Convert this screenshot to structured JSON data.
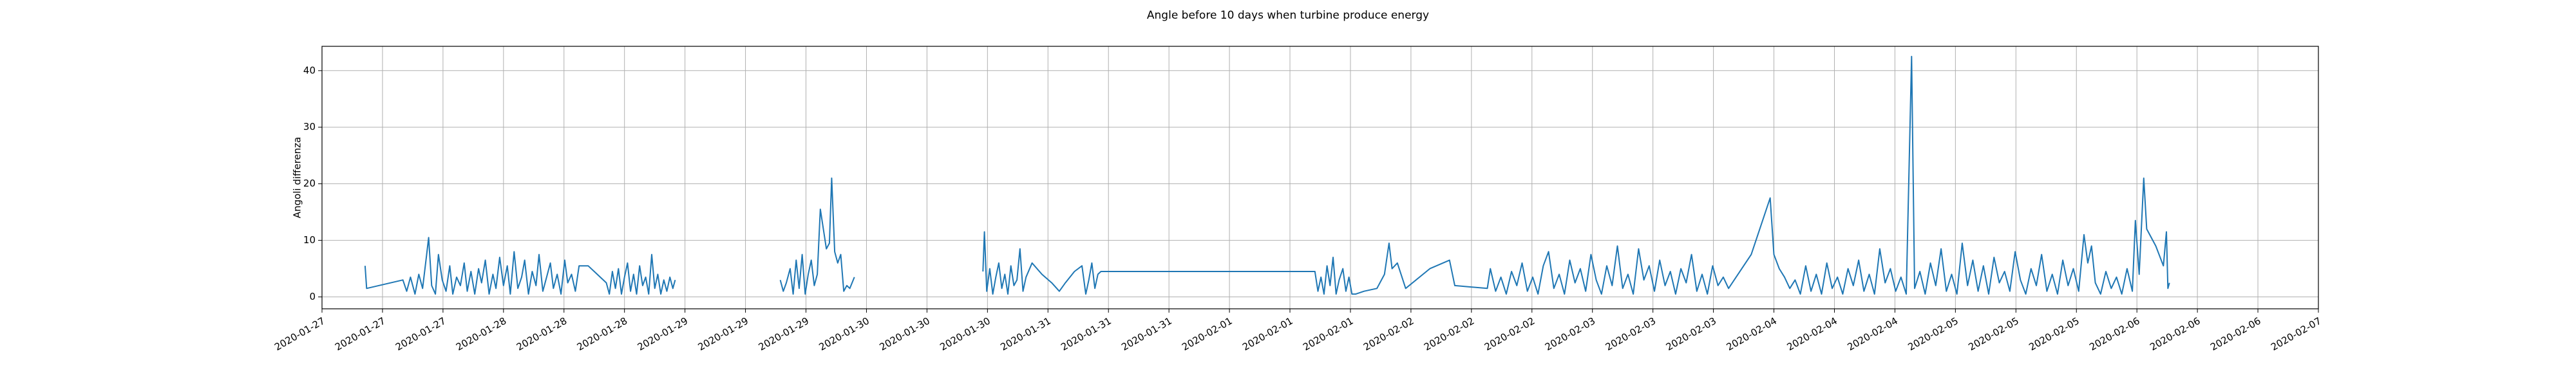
{
  "chart_data": {
    "type": "line",
    "title": "Angle before 10 days when turbine produce energy",
    "y_label": "Angoli differenza",
    "color": "#1f77b4",
    "grid": true,
    "xlim": [
      0,
      264
    ],
    "ylim": [
      -2.1,
      44.3
    ],
    "yticks": [
      0,
      10,
      20,
      30,
      40
    ],
    "xticks": [
      {
        "value": 0,
        "label": "2020-01-27"
      },
      {
        "value": 8,
        "label": "2020-01-27"
      },
      {
        "value": 16,
        "label": "2020-01-27"
      },
      {
        "value": 24,
        "label": "2020-01-28"
      },
      {
        "value": 32,
        "label": "2020-01-28"
      },
      {
        "value": 40,
        "label": "2020-01-28"
      },
      {
        "value": 48,
        "label": "2020-01-29"
      },
      {
        "value": 56,
        "label": "2020-01-29"
      },
      {
        "value": 64,
        "label": "2020-01-29"
      },
      {
        "value": 72,
        "label": "2020-01-30"
      },
      {
        "value": 80,
        "label": "2020-01-30"
      },
      {
        "value": 88,
        "label": "2020-01-30"
      },
      {
        "value": 96,
        "label": "2020-01-31"
      },
      {
        "value": 104,
        "label": "2020-01-31"
      },
      {
        "value": 112,
        "label": "2020-01-31"
      },
      {
        "value": 120,
        "label": "2020-02-01"
      },
      {
        "value": 128,
        "label": "2020-02-01"
      },
      {
        "value": 136,
        "label": "2020-02-01"
      },
      {
        "value": 144,
        "label": "2020-02-02"
      },
      {
        "value": 152,
        "label": "2020-02-02"
      },
      {
        "value": 160,
        "label": "2020-02-02"
      },
      {
        "value": 168,
        "label": "2020-02-03"
      },
      {
        "value": 176,
        "label": "2020-02-03"
      },
      {
        "value": 184,
        "label": "2020-02-03"
      },
      {
        "value": 192,
        "label": "2020-02-04"
      },
      {
        "value": 200,
        "label": "2020-02-04"
      },
      {
        "value": 208,
        "label": "2020-02-04"
      },
      {
        "value": 216,
        "label": "2020-02-05"
      },
      {
        "value": 224,
        "label": "2020-02-05"
      },
      {
        "value": 232,
        "label": "2020-02-05"
      },
      {
        "value": 240,
        "label": "2020-02-06"
      },
      {
        "value": 248,
        "label": "2020-02-06"
      },
      {
        "value": 256,
        "label": "2020-02-06"
      },
      {
        "value": 264,
        "label": "2020-02-07"
      }
    ],
    "x": [
      5.7,
      5.9,
      10.7,
      11.2,
      11.7,
      12.3,
      12.8,
      13.3,
      13.8,
      14.1,
      14.5,
      15.0,
      15.4,
      15.9,
      16.4,
      16.9,
      17.3,
      17.8,
      18.3,
      18.8,
      19.2,
      19.7,
      20.2,
      20.7,
      21.1,
      21.6,
      22.1,
      22.6,
      23.0,
      23.5,
      24.0,
      24.5,
      24.9,
      25.4,
      25.9,
      26.4,
      26.8,
      27.3,
      27.8,
      28.3,
      28.7,
      29.2,
      29.7,
      30.2,
      30.6,
      31.1,
      31.6,
      32.1,
      32.5,
      33.0,
      33.5,
      34.0,
      35.2,
      36.4,
      37.6,
      38.0,
      38.4,
      38.8,
      39.2,
      39.6,
      40.0,
      40.4,
      40.8,
      41.2,
      41.6,
      42.0,
      42.4,
      42.8,
      43.2,
      43.6,
      44.0,
      44.4,
      44.8,
      45.2,
      45.6,
      46.0,
      46.4,
      46.7,
      53.0,
      60.6,
      61.0,
      61.4,
      61.9,
      62.3,
      62.7,
      63.1,
      63.5,
      63.9,
      64.3,
      64.7,
      65.1,
      65.5,
      65.9,
      66.3,
      66.7,
      67.1,
      67.4,
      67.8,
      68.2,
      68.6,
      69.0,
      69.4,
      69.8,
      70.4,
      80.0,
      87.4,
      87.6,
      87.9,
      88.3,
      88.7,
      89.1,
      89.5,
      89.9,
      90.3,
      90.7,
      91.1,
      91.5,
      91.9,
      92.3,
      92.7,
      93.1,
      93.9,
      95.2,
      96.5,
      97.5,
      98.3,
      99.5,
      100.5,
      101.0,
      101.4,
      101.8,
      102.2,
      102.6,
      103.0,
      131.3,
      131.7,
      132.1,
      132.5,
      132.9,
      133.3,
      133.7,
      134.1,
      134.5,
      135.0,
      135.4,
      135.8,
      136.2,
      136.7,
      137.8,
      139.5,
      140.5,
      141.1,
      141.5,
      142.2,
      143.3,
      146.5,
      149.1,
      149.8,
      154.1,
      154.5,
      155.2,
      155.9,
      156.6,
      157.3,
      158.0,
      158.7,
      159.4,
      160.1,
      160.8,
      161.5,
      162.2,
      162.9,
      163.6,
      164.3,
      165.0,
      165.7,
      166.4,
      167.1,
      167.8,
      168.5,
      169.2,
      169.9,
      170.6,
      171.3,
      172.0,
      172.7,
      173.4,
      174.1,
      174.8,
      175.5,
      176.2,
      176.9,
      177.6,
      178.3,
      179.0,
      179.7,
      180.4,
      181.1,
      181.8,
      182.5,
      183.2,
      183.9,
      184.6,
      185.3,
      186.0,
      189.0,
      191.5,
      192.0,
      192.7,
      193.4,
      194.1,
      194.8,
      195.5,
      196.2,
      196.9,
      197.6,
      198.3,
      199.0,
      199.7,
      200.4,
      201.1,
      201.8,
      202.5,
      203.2,
      203.9,
      204.6,
      205.3,
      206.0,
      206.7,
      207.4,
      208.1,
      208.8,
      209.5,
      210.2,
      210.6,
      211.3,
      212.0,
      212.7,
      213.4,
      214.1,
      214.8,
      215.5,
      216.2,
      216.9,
      217.6,
      218.3,
      219.0,
      219.7,
      220.4,
      221.1,
      221.8,
      222.5,
      223.2,
      223.9,
      224.6,
      225.3,
      226.0,
      226.7,
      227.4,
      228.1,
      228.8,
      229.5,
      230.2,
      230.9,
      231.6,
      232.3,
      233.0,
      233.5,
      234.0,
      234.5,
      235.2,
      235.9,
      236.6,
      237.3,
      238.0,
      238.7,
      239.4,
      239.8,
      240.3,
      240.9,
      241.3,
      242.5,
      243.5,
      243.9,
      244.1,
      244.3
    ],
    "values": [
      5.5,
      1.5,
      3.0,
      1.0,
      3.5,
      0.5,
      4.0,
      1.5,
      7.0,
      10.5,
      2.0,
      0.5,
      7.5,
      3.0,
      1.0,
      5.5,
      0.5,
      3.5,
      2.0,
      6.0,
      1.0,
      4.5,
      0.5,
      5.0,
      2.5,
      6.5,
      0.5,
      4.0,
      1.5,
      7.0,
      2.0,
      5.5,
      0.5,
      8.0,
      1.5,
      3.5,
      6.5,
      0.5,
      4.5,
      2.0,
      7.5,
      1.0,
      3.5,
      6.0,
      1.5,
      4.0,
      0.5,
      6.5,
      2.5,
      4.0,
      1.0,
      5.5,
      5.5,
      4.0,
      2.5,
      0.5,
      4.5,
      1.5,
      5.0,
      0.5,
      3.5,
      6.0,
      1.0,
      4.0,
      0.5,
      5.5,
      2.0,
      3.5,
      0.5,
      7.5,
      1.5,
      4.0,
      0.5,
      3.0,
      1.0,
      3.5,
      1.5,
      3.0,
      null,
      3.0,
      1.0,
      2.5,
      5.0,
      0.5,
      6.5,
      1.5,
      7.5,
      0.5,
      4.0,
      6.5,
      2.0,
      4.0,
      15.5,
      12.0,
      8.5,
      9.5,
      21.0,
      8.0,
      6.0,
      7.5,
      1.0,
      2.0,
      1.5,
      3.5,
      null,
      4.5,
      11.5,
      1.0,
      5.0,
      0.5,
      3.5,
      6.0,
      1.5,
      4.0,
      0.5,
      5.5,
      2.0,
      3.0,
      8.5,
      1.0,
      3.5,
      6.0,
      4.0,
      2.5,
      1.0,
      2.5,
      4.5,
      5.5,
      0.5,
      3.0,
      6.0,
      1.5,
      4.0,
      4.5,
      4.5,
      1.0,
      3.5,
      0.5,
      5.5,
      2.0,
      7.0,
      0.5,
      3.0,
      5.0,
      1.0,
      3.5,
      0.5,
      0.5,
      1.0,
      1.5,
      4.0,
      9.5,
      5.0,
      6.0,
      1.5,
      5.0,
      6.5,
      2.0,
      1.5,
      5.0,
      1.0,
      3.5,
      0.5,
      4.5,
      2.0,
      6.0,
      1.0,
      3.5,
      0.5,
      5.5,
      8.0,
      1.5,
      4.0,
      0.5,
      6.5,
      2.5,
      5.0,
      1.0,
      7.5,
      3.0,
      0.5,
      5.5,
      2.0,
      9.0,
      1.5,
      4.0,
      0.5,
      8.5,
      3.0,
      5.5,
      1.0,
      6.5,
      2.0,
      4.5,
      0.5,
      5.0,
      2.5,
      7.5,
      1.0,
      4.0,
      0.5,
      5.5,
      2.0,
      3.5,
      1.5,
      7.5,
      17.5,
      7.5,
      5.0,
      3.5,
      1.5,
      3.0,
      0.5,
      5.5,
      1.0,
      4.0,
      0.5,
      6.0,
      1.5,
      3.5,
      0.5,
      5.0,
      2.0,
      6.5,
      1.0,
      4.0,
      0.5,
      8.5,
      2.5,
      5.0,
      1.0,
      3.5,
      0.5,
      42.5,
      1.5,
      4.5,
      0.5,
      6.0,
      2.0,
      8.5,
      1.0,
      4.0,
      0.5,
      9.5,
      2.0,
      6.5,
      1.0,
      5.5,
      0.5,
      7.0,
      2.5,
      4.5,
      1.0,
      8.0,
      3.0,
      0.5,
      5.0,
      2.0,
      7.5,
      1.0,
      4.0,
      0.5,
      6.5,
      2.0,
      5.0,
      1.0,
      11.0,
      6.0,
      9.0,
      2.5,
      0.5,
      4.5,
      1.5,
      3.5,
      0.5,
      5.0,
      1.0,
      13.5,
      4.0,
      21.0,
      12.0,
      9.0,
      5.5,
      11.5,
      1.5,
      2.5
    ]
  }
}
